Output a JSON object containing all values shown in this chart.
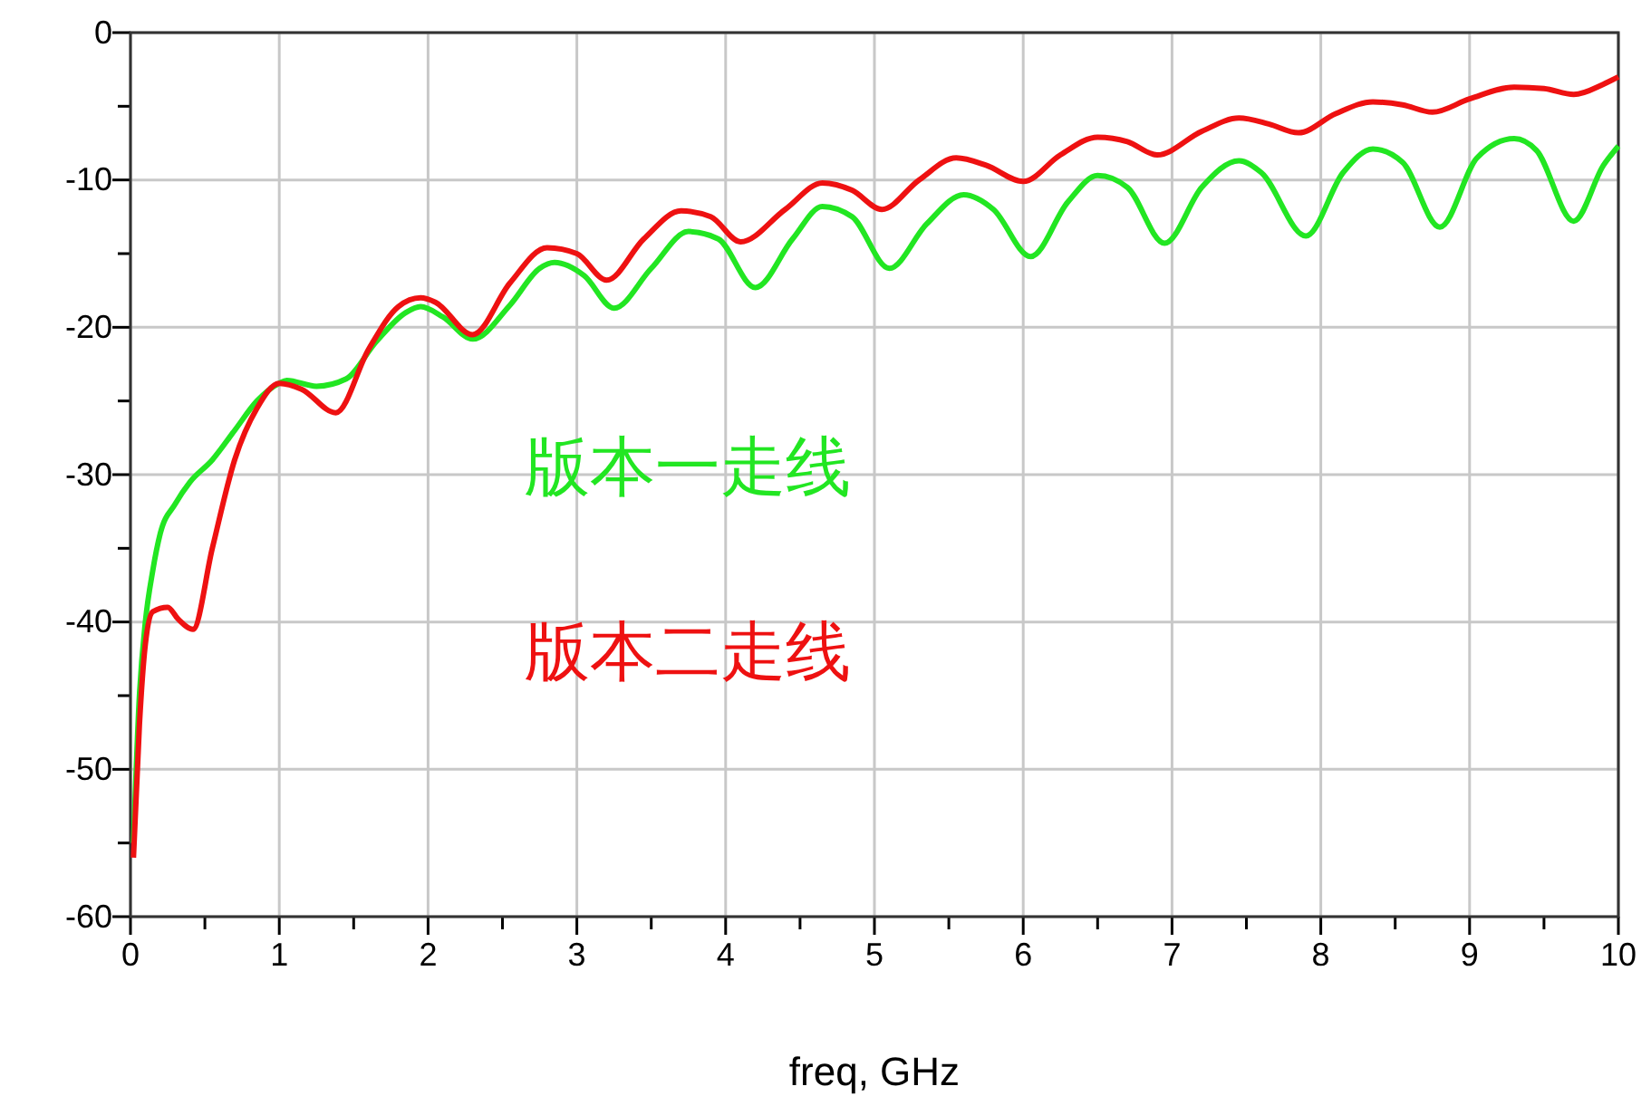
{
  "chart_data": {
    "type": "line",
    "xlabel": "freq, GHz",
    "xlim": [
      0,
      10
    ],
    "ylim": [
      -60,
      0
    ],
    "xticks": [
      0,
      {
        "value": 0.5,
        "label": null
      },
      1,
      {
        "value": 1.5,
        "label": null
      },
      2,
      {
        "value": 2.5,
        "label": null
      },
      3,
      {
        "value": 3.5,
        "label": null
      },
      4,
      {
        "value": 4.5,
        "label": null
      },
      5,
      {
        "value": 5.5,
        "label": null
      },
      6,
      {
        "value": 6.5,
        "label": null
      },
      7,
      {
        "value": 7.5,
        "label": null
      },
      8,
      {
        "value": 8.5,
        "label": null
      },
      9,
      {
        "value": 9.5,
        "label": null
      },
      10
    ],
    "yticks": [
      -60,
      {
        "value": -55,
        "label": null
      },
      -50,
      {
        "value": -45,
        "label": null
      },
      -40,
      {
        "value": -35,
        "label": null
      },
      -30,
      {
        "value": -25,
        "label": null
      },
      -20,
      {
        "value": -15,
        "label": null
      },
      -10,
      {
        "value": -5,
        "label": null
      },
      0
    ],
    "grid": true,
    "legend": false,
    "line_style": "solid",
    "marker": "none",
    "series": [
      {
        "name": "版本一走线",
        "color": "#22e622",
        "x": [
          0.02,
          0.06,
          0.1,
          0.15,
          0.2,
          0.3,
          0.4,
          0.55,
          0.7,
          0.85,
          1.0,
          1.05,
          1.25,
          1.45,
          1.65,
          1.85,
          1.95,
          2.1,
          2.3,
          2.55,
          2.75,
          2.85,
          3.05,
          3.25,
          3.5,
          3.75,
          3.95,
          4.2,
          4.45,
          4.65,
          4.85,
          5.1,
          5.35,
          5.6,
          5.8,
          6.05,
          6.3,
          6.5,
          6.7,
          6.95,
          7.2,
          7.45,
          7.6,
          7.9,
          8.15,
          8.35,
          8.55,
          8.8,
          9.05,
          9.3,
          9.45,
          9.7,
          9.9,
          10
        ],
        "values": [
          -55,
          -45,
          -40,
          -36.5,
          -34,
          -32,
          -30.5,
          -29,
          -27,
          -25,
          -23.8,
          -23.6,
          -24,
          -23.5,
          -21,
          -19,
          -18.6,
          -19.3,
          -20.8,
          -18.5,
          -16,
          -15.6,
          -16.5,
          -18.7,
          -16,
          -13.5,
          -14,
          -17.3,
          -14,
          -11.8,
          -12.5,
          -16,
          -13,
          -11,
          -12,
          -15.2,
          -11.5,
          -9.7,
          -10.5,
          -14.3,
          -10.5,
          -8.7,
          -9.5,
          -13.8,
          -9.5,
          -7.9,
          -8.8,
          -13.2,
          -8.5,
          -7.2,
          -8,
          -12.8,
          -9,
          -7.7
        ]
      },
      {
        "name": "版本二走线",
        "color": "#ee1111",
        "x": [
          0.02,
          0.06,
          0.1,
          0.15,
          0.25,
          0.32,
          0.42,
          0.55,
          0.7,
          0.85,
          1.0,
          1.15,
          1.38,
          1.6,
          1.8,
          1.95,
          2.05,
          2.3,
          2.55,
          2.8,
          3.0,
          3.2,
          3.45,
          3.7,
          3.9,
          4.1,
          4.4,
          4.65,
          4.85,
          5.05,
          5.3,
          5.55,
          5.75,
          6.0,
          6.25,
          6.5,
          6.7,
          6.9,
          7.2,
          7.45,
          7.65,
          7.85,
          8.1,
          8.35,
          8.55,
          8.75,
          9.0,
          9.3,
          9.5,
          9.7,
          9.9,
          10
        ],
        "values": [
          -56,
          -47,
          -41.5,
          -39.3,
          -39,
          -39.8,
          -40.5,
          -35,
          -29,
          -25.5,
          -23.8,
          -24.2,
          -25.8,
          -21.5,
          -18.6,
          -18,
          -18.3,
          -20.5,
          -17,
          -14.6,
          -15,
          -16.8,
          -14,
          -12.1,
          -12.5,
          -14.2,
          -12,
          -10.2,
          -10.7,
          -12,
          -10,
          -8.5,
          -9,
          -10.1,
          -8.3,
          -7.1,
          -7.4,
          -8.3,
          -6.7,
          -5.8,
          -6.2,
          -6.8,
          -5.5,
          -4.7,
          -4.9,
          -5.4,
          -4.5,
          -3.7,
          -3.8,
          -4.2,
          -3.5,
          -3
        ]
      }
    ]
  }
}
